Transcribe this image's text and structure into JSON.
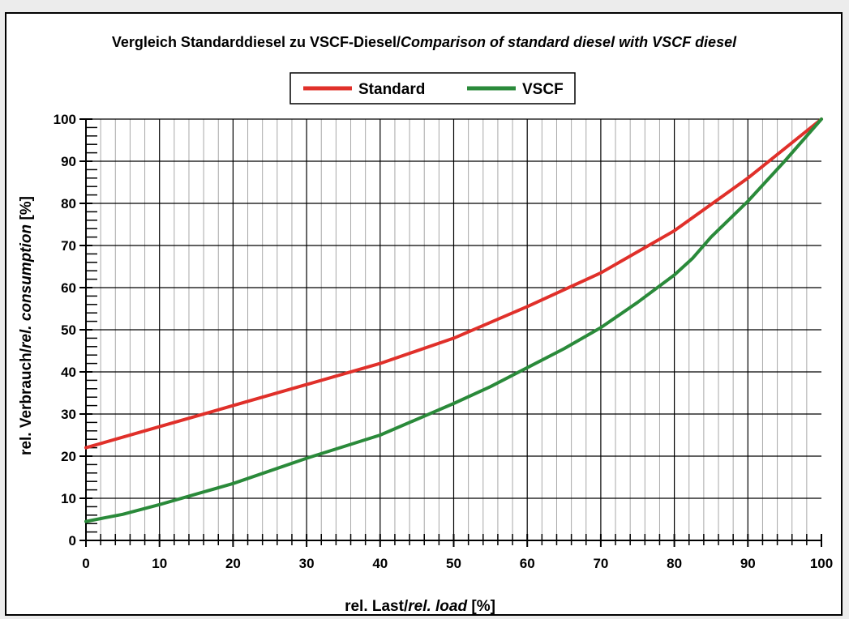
{
  "chart_data": {
    "type": "line",
    "title_main": "Vergleich Standarddiesel zu VSCF-Diesel/",
    "title_italic": "Comparison of standard diesel with VSCF diesel",
    "xlabel_main": "rel. Last/",
    "xlabel_italic": "rel. load",
    "xlabel_unit": " [%]",
    "ylabel_main": "rel. Verbrauch/",
    "ylabel_italic": "rel. consumption",
    "ylabel_unit": " [%]",
    "xlim": [
      0,
      100
    ],
    "ylim": [
      0,
      100
    ],
    "xticks": [
      "0",
      "10",
      "20",
      "30",
      "40",
      "50",
      "60",
      "70",
      "80",
      "90",
      "100"
    ],
    "yticks": [
      "0",
      "10",
      "20",
      "30",
      "40",
      "50",
      "60",
      "70",
      "80",
      "90",
      "100"
    ],
    "grid": true,
    "legend_position": "top-center",
    "series": [
      {
        "name": "Standard",
        "color": "#e0302a",
        "x": [
          0,
          10,
          20,
          30,
          40,
          50,
          60,
          70,
          80,
          90,
          100
        ],
        "y": [
          22,
          27,
          32,
          37,
          42,
          48,
          55.5,
          63.5,
          73.5,
          86,
          100
        ]
      },
      {
        "name": "VSCF",
        "color": "#2a8a3a",
        "x": [
          0,
          5,
          10,
          20,
          30,
          40,
          50,
          55,
          60,
          65,
          70,
          75,
          80,
          82.5,
          85,
          90,
          95,
          100
        ],
        "y": [
          4.5,
          6.2,
          8.5,
          13.5,
          19.5,
          25,
          32.5,
          36.5,
          41,
          45.5,
          50.5,
          56.5,
          63,
          67,
          72,
          80.5,
          90,
          100
        ]
      }
    ]
  }
}
